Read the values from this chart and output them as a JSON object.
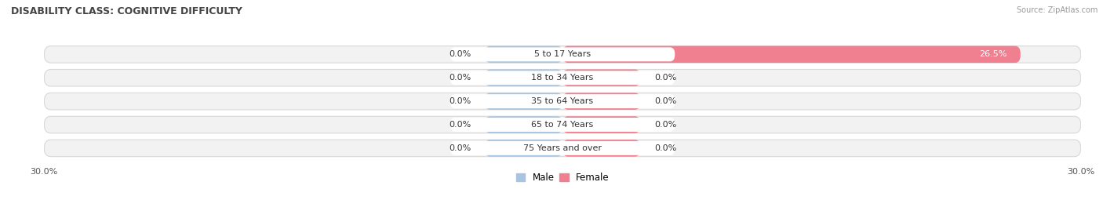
{
  "title": "DISABILITY CLASS: COGNITIVE DIFFICULTY",
  "source": "Source: ZipAtlas.com",
  "categories": [
    "5 to 17 Years",
    "18 to 34 Years",
    "35 to 64 Years",
    "65 to 74 Years",
    "75 Years and over"
  ],
  "male_values": [
    0.0,
    0.0,
    0.0,
    0.0,
    0.0
  ],
  "female_values": [
    26.5,
    0.0,
    0.0,
    0.0,
    0.0
  ],
  "male_color": "#a8c4e0",
  "female_color": "#f08090",
  "bar_bg_color": "#f2f2f2",
  "bar_outline_color": "#d8d8d8",
  "label_pill_color": "#ffffff",
  "axis_min": -30.0,
  "axis_max": 30.0,
  "x_tick_label_left": "30.0%",
  "x_tick_label_right": "30.0%",
  "label_color_dark": "#333333",
  "label_color_white": "#ffffff",
  "background_color": "#ffffff",
  "bar_height": 0.72,
  "min_bar_width": 4.5,
  "title_fontsize": 9,
  "tick_fontsize": 8,
  "bar_label_fontsize": 8,
  "cat_label_fontsize": 8
}
